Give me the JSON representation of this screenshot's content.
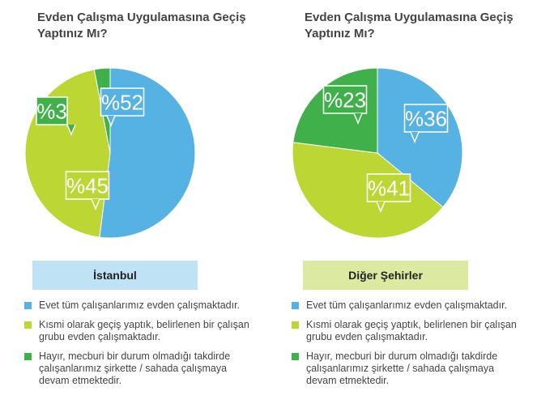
{
  "chart_data": [
    {
      "type": "pie",
      "title": "Evden Çalışma Uygulamasına Geçiş Yaptınız Mı?",
      "subtitle": "İstanbul",
      "categories": [
        "Evet tüm çalışanlarımız evden çalışmaktadır.",
        "Kısmi olarak geçiş yaptık, belirlenen bir çalışan grubu evden çalışmaktadır.",
        "Hayır, mecburi bir durum olmadığı takdirde çalışanlarımız şirkette / sahada çalışmaya devam etmektedir."
      ],
      "values": [
        52,
        45,
        3
      ],
      "data_labels": [
        "%52",
        "%45",
        "%3"
      ],
      "colors": [
        "#56b2e3",
        "#bcd634",
        "#40b04a"
      ],
      "legend": "bottom"
    },
    {
      "type": "pie",
      "title": "Evden Çalışma Uygulamasına Geçiş Yaptınız Mı?",
      "subtitle": "Diğer Şehirler",
      "categories": [
        "Evet tüm çalışanlarımız evden çalışmaktadır.",
        "Kısmi olarak geçiş yaptık, belirlenen bir çalışan grubu evden çalışmaktadır.",
        "Hayır, mecburi bir durum olmadığı takdirde çalışanlarımız şirkette / sahada çalışmaya devam etmektedir."
      ],
      "values": [
        36,
        41,
        23
      ],
      "data_labels": [
        "%36",
        "%41",
        "%23"
      ],
      "colors": [
        "#56b2e3",
        "#bcd634",
        "#40b04a"
      ],
      "legend": "bottom"
    }
  ]
}
